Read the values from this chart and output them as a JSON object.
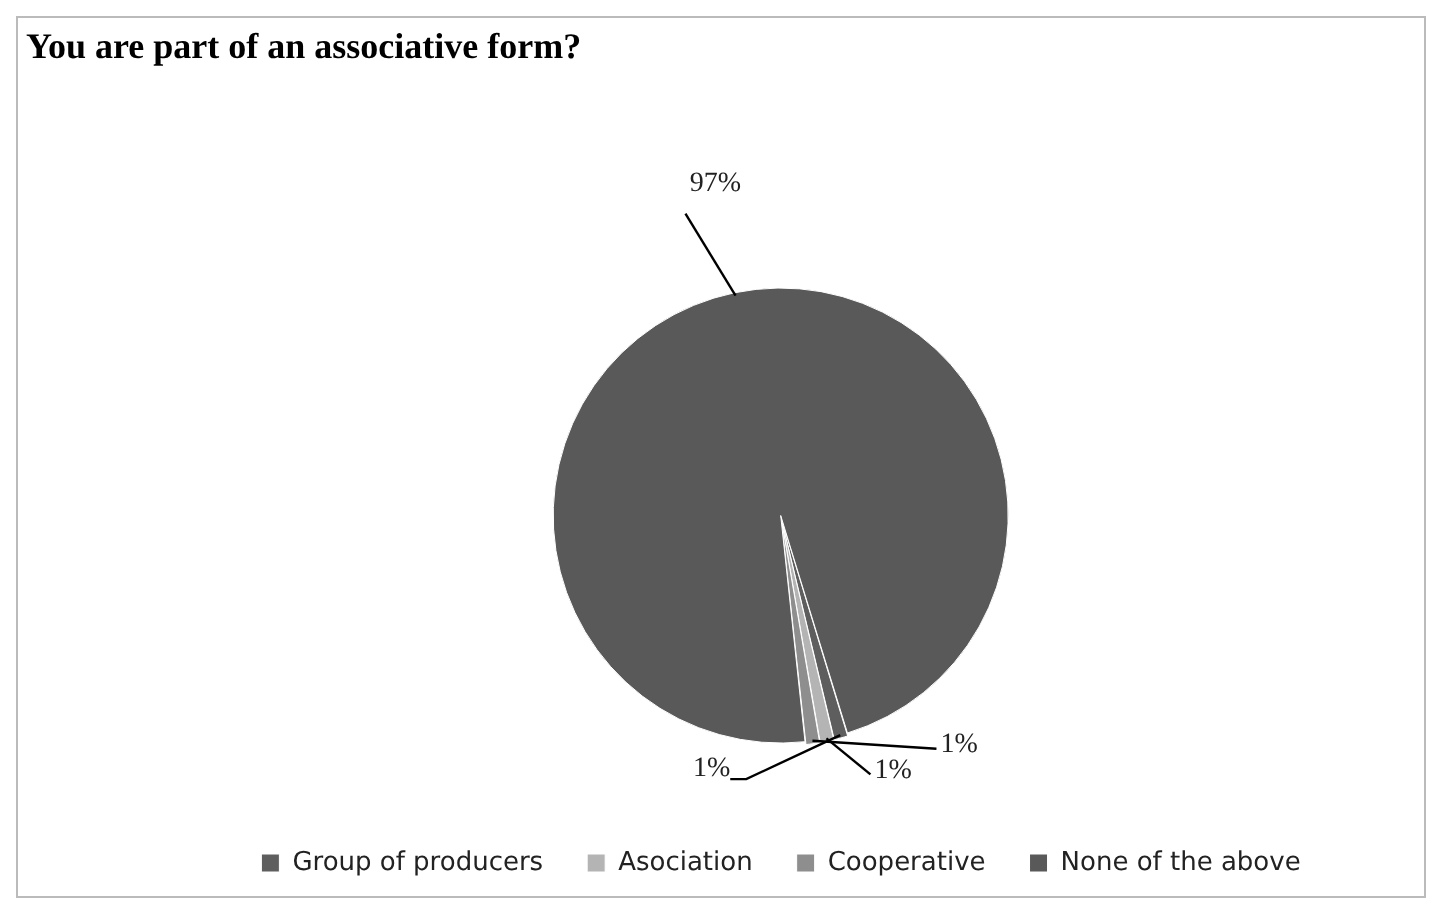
{
  "chart_data": {
    "type": "pie",
    "title": "You are part of an associative form?",
    "categories": [
      "Group of producers",
      "Asociation",
      "Cooperative",
      "None of the above"
    ],
    "values": [
      1,
      1,
      1,
      97
    ],
    "colors": [
      "#5e5e5e",
      "#b4b4b4",
      "#8e8e8e",
      "#595959"
    ],
    "value_labels": [
      "1%",
      "1%",
      "1%",
      "97%"
    ],
    "legend": "bottom"
  }
}
